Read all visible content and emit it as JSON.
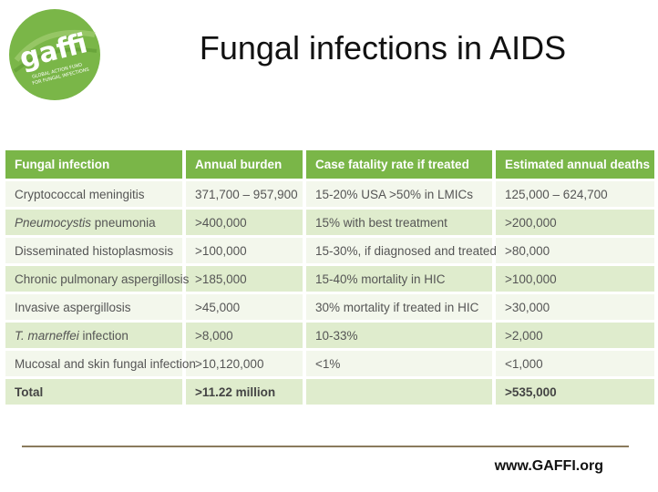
{
  "slide": {
    "title": "Fungal infections in AIDS",
    "footer_url": "www.GAFFI.org"
  },
  "logo": {
    "wordmark": "gaffi",
    "tagline": "GLOBAL ACTION FUND FOR FUNGAL INFECTIONS",
    "colors": {
      "circle": "#7ab648",
      "text": "#ffffff"
    }
  },
  "table": {
    "headers": [
      "Fungal infection",
      "Annual burden",
      "Case fatality rate if treated",
      "Estimated annual deaths"
    ],
    "rows": [
      {
        "name_plain": "Cryptococcal meningitis",
        "name_italic": "",
        "name_rest": "",
        "burden": "371,700 – 957,900",
        "fatality": "15-20% USA >50% in LMICs",
        "deaths": "125,000 – 624,700"
      },
      {
        "name_plain": "",
        "name_italic": "Pneumocystis",
        "name_rest": " pneumonia",
        "burden": ">400,000",
        "fatality": "15% with best treatment",
        "deaths": ">200,000"
      },
      {
        "name_plain": "Disseminated histoplasmosis",
        "name_italic": "",
        "name_rest": "",
        "burden": ">100,000",
        "fatality": "15-30%, if diagnosed and treated",
        "deaths": ">80,000"
      },
      {
        "name_plain": "Chronic pulmonary aspergillosis",
        "name_italic": "",
        "name_rest": "",
        "burden": ">185,000",
        "fatality": "15-40% mortality in HIC",
        "deaths": ">100,000"
      },
      {
        "name_plain": "Invasive aspergillosis",
        "name_italic": "",
        "name_rest": "",
        "burden": ">45,000",
        "fatality": "30% mortality if treated in HIC",
        "deaths": ">30,000"
      },
      {
        "name_plain": "",
        "name_italic": "T. marneffei",
        "name_rest": " infection",
        "burden": ">8,000",
        "fatality": "10-33%",
        "deaths": ">2,000"
      },
      {
        "name_plain": "Mucosal and skin fungal infection",
        "name_italic": "",
        "name_rest": "",
        "burden": ">10,120,000",
        "fatality": "<1%",
        "deaths": "<1,000"
      }
    ],
    "total": {
      "label": "Total",
      "burden": ">11.22 million",
      "fatality": "",
      "deaths": ">535,000"
    },
    "colors": {
      "header": "#7ab648",
      "row_light": "#f3f7ec",
      "row_dark": "#dfeccd"
    }
  }
}
